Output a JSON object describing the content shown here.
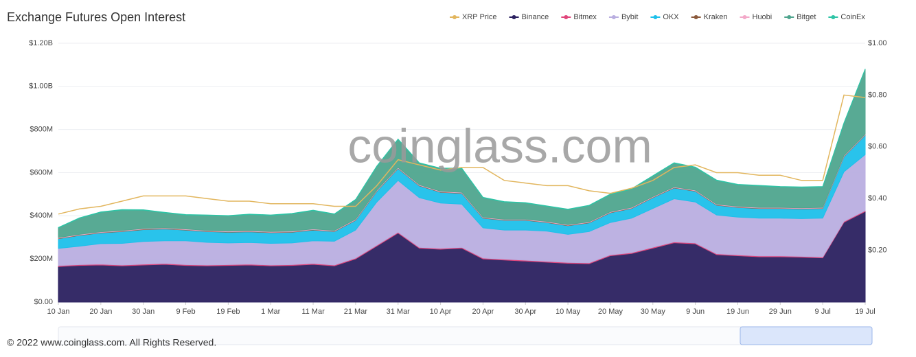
{
  "chart_data": {
    "type": "stacked-area",
    "title": "Exchange  Futures Open Interest",
    "watermark": "coinglass.com",
    "footer": "© 2022 www.coinglass.com. All Rights Reserved.",
    "categories": [
      "10 Jan",
      null,
      "20 Jan",
      null,
      "30 Jan",
      null,
      "9 Feb",
      null,
      "19 Feb",
      null,
      "1 Mar",
      null,
      "11 Mar",
      null,
      "21 Mar",
      null,
      "31 Mar",
      null,
      "10 Apr",
      null,
      "20 Apr",
      null,
      "30 Apr",
      null,
      "10 May",
      null,
      "20 May",
      null,
      "30 May",
      null,
      "9 Jun",
      null,
      "19 Jun",
      null,
      "29 Jun",
      null,
      "9 Jul",
      null,
      "19 Jul"
    ],
    "ylim": [
      0,
      1200
    ],
    "yticks": [
      {
        "value": 0,
        "label": "$0.00"
      },
      {
        "value": 200,
        "label": "$200M"
      },
      {
        "value": 400,
        "label": "$400M"
      },
      {
        "value": 600,
        "label": "$600M"
      },
      {
        "value": 800,
        "label": "$800M"
      },
      {
        "value": 1000,
        "label": "$1.00B"
      },
      {
        "value": 1200,
        "label": "$1.20B"
      }
    ],
    "y2lim": [
      0,
      1
    ],
    "y2ticks": [
      {
        "value": 0.2,
        "label": "$0.20"
      },
      {
        "value": 0.4,
        "label": "$0.40"
      },
      {
        "value": 0.6,
        "label": "$0.60"
      },
      {
        "value": 0.8,
        "label": "$0.80"
      },
      {
        "value": 1,
        "label": "$1.00"
      }
    ],
    "grid": true,
    "series": [
      {
        "name": "XRP Price",
        "color": "#e2b65e",
        "axis": "y2",
        "type": "line",
        "values": [
          0.34,
          0.36,
          0.37,
          0.39,
          0.41,
          0.41,
          0.41,
          0.4,
          0.39,
          0.39,
          0.38,
          0.38,
          0.38,
          0.37,
          0.37,
          0.45,
          0.55,
          0.53,
          0.51,
          0.52,
          0.52,
          0.47,
          0.46,
          0.45,
          0.45,
          0.43,
          0.42,
          0.44,
          0.47,
          0.52,
          0.53,
          0.5,
          0.5,
          0.49,
          0.49,
          0.47,
          0.47,
          0.8,
          0.79
        ]
      },
      {
        "name": "Binance",
        "color": "#2b2160",
        "values": [
          165,
          170,
          172,
          168,
          172,
          175,
          170,
          168,
          170,
          172,
          168,
          170,
          175,
          168,
          200,
          260,
          320,
          250,
          245,
          250,
          200,
          195,
          190,
          185,
          180,
          178,
          215,
          225,
          250,
          275,
          270,
          220,
          215,
          210,
          210,
          208,
          205,
          370,
          420
        ]
      },
      {
        "name": "Bitmex",
        "color": "#e0457b",
        "values": [
          4,
          4,
          4,
          4,
          4,
          4,
          4,
          4,
          4,
          4,
          4,
          4,
          4,
          4,
          4,
          4,
          4,
          4,
          4,
          4,
          4,
          4,
          4,
          4,
          4,
          4,
          4,
          4,
          4,
          4,
          4,
          4,
          4,
          4,
          4,
          4,
          4,
          4,
          4
        ]
      },
      {
        "name": "Bybit",
        "color": "#b9aee0",
        "values": [
          80,
          85,
          95,
          100,
          105,
          105,
          110,
          105,
          100,
          100,
          100,
          100,
          105,
          110,
          130,
          200,
          240,
          230,
          210,
          200,
          140,
          135,
          140,
          140,
          130,
          145,
          150,
          160,
          180,
          200,
          190,
          180,
          175,
          175,
          175,
          175,
          180,
          230,
          260
        ]
      },
      {
        "name": "OKX",
        "color": "#1ec0ea",
        "values": [
          45,
          50,
          50,
          55,
          55,
          55,
          50,
          50,
          50,
          50,
          50,
          50,
          50,
          45,
          45,
          50,
          55,
          55,
          50,
          50,
          45,
          45,
          45,
          40,
          40,
          40,
          45,
          45,
          50,
          50,
          50,
          45,
          45,
          45,
          45,
          45,
          45,
          70,
          90
        ]
      },
      {
        "name": "Kraken",
        "color": "#8b5a3c",
        "values": [
          2,
          2,
          2,
          2,
          2,
          2,
          2,
          2,
          2,
          2,
          2,
          2,
          2,
          2,
          2,
          2,
          2,
          2,
          2,
          2,
          2,
          2,
          2,
          2,
          2,
          2,
          2,
          2,
          2,
          2,
          2,
          2,
          2,
          2,
          2,
          2,
          2,
          2,
          2
        ]
      },
      {
        "name": "Huobi",
        "color": "#f3a9c9",
        "values": [
          3,
          3,
          3,
          3,
          3,
          3,
          3,
          3,
          3,
          3,
          3,
          3,
          3,
          3,
          3,
          3,
          3,
          3,
          3,
          3,
          3,
          3,
          3,
          3,
          3,
          3,
          3,
          3,
          3,
          3,
          3,
          3,
          3,
          3,
          3,
          3,
          3,
          3,
          3
        ]
      },
      {
        "name": "Bitget",
        "color": "#4fa58e",
        "values": [
          45,
          75,
          90,
          95,
          85,
          70,
          65,
          70,
          70,
          75,
          75,
          80,
          85,
          75,
          90,
          110,
          130,
          100,
          105,
          110,
          90,
          80,
          75,
          70,
          70,
          75,
          80,
          85,
          95,
          110,
          105,
          110,
          100,
          100,
          95,
          95,
          95,
          150,
          300
        ]
      },
      {
        "name": "CoinEx",
        "color": "#2ec4a6",
        "values": [
          2,
          2,
          2,
          2,
          2,
          2,
          2,
          2,
          2,
          2,
          2,
          2,
          2,
          2,
          2,
          2,
          2,
          2,
          2,
          2,
          2,
          2,
          2,
          2,
          2,
          2,
          2,
          2,
          2,
          2,
          2,
          2,
          2,
          2,
          2,
          2,
          2,
          2,
          2
        ]
      }
    ]
  }
}
